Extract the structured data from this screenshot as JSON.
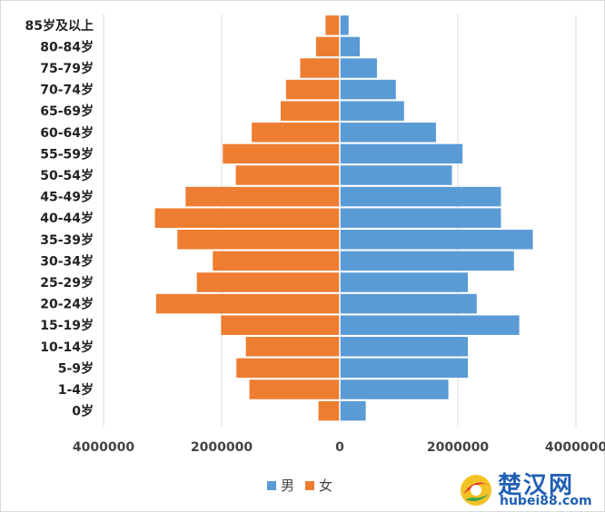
{
  "chart_data": {
    "type": "bar",
    "orientation": "horizontal",
    "layout": "population-pyramid",
    "categories": [
      "85岁及以上",
      "80-84岁",
      "75-79岁",
      "70-74岁",
      "65-69岁",
      "60-64岁",
      "55-59岁",
      "50-54岁",
      "45-49岁",
      "40-44岁",
      "35-39岁",
      "30-34岁",
      "25-29岁",
      "20-24岁",
      "15-19岁",
      "10-14岁",
      "5-9岁",
      "1-4岁",
      "0岁"
    ],
    "series": [
      {
        "name": "男",
        "color": "#5b9bd5",
        "values": [
          150000,
          340000,
          630000,
          950000,
          1090000,
          1630000,
          2080000,
          1900000,
          2730000,
          2730000,
          3270000,
          2950000,
          2170000,
          2320000,
          3040000,
          2170000,
          2170000,
          1840000,
          440000
        ]
      },
      {
        "name": "女",
        "color": "#ed7d31",
        "values": [
          -240000,
          -400000,
          -670000,
          -910000,
          -1000000,
          -1490000,
          -1980000,
          -1760000,
          -2610000,
          -3130000,
          -2750000,
          -2150000,
          -2420000,
          -3110000,
          -2010000,
          -1590000,
          -1750000,
          -1530000,
          -360000
        ]
      }
    ],
    "xlim": [
      -4000000,
      4000000
    ],
    "xticks": [
      -4000000,
      -2000000,
      0,
      2000000,
      4000000
    ],
    "xtick_labels": [
      "4000000",
      "2000000",
      "0",
      "2000000",
      "4000000"
    ],
    "grid": "vertical",
    "legend": "bottom-center"
  },
  "watermark": {
    "title": "楚汉网",
    "url": "hubei88.com"
  }
}
